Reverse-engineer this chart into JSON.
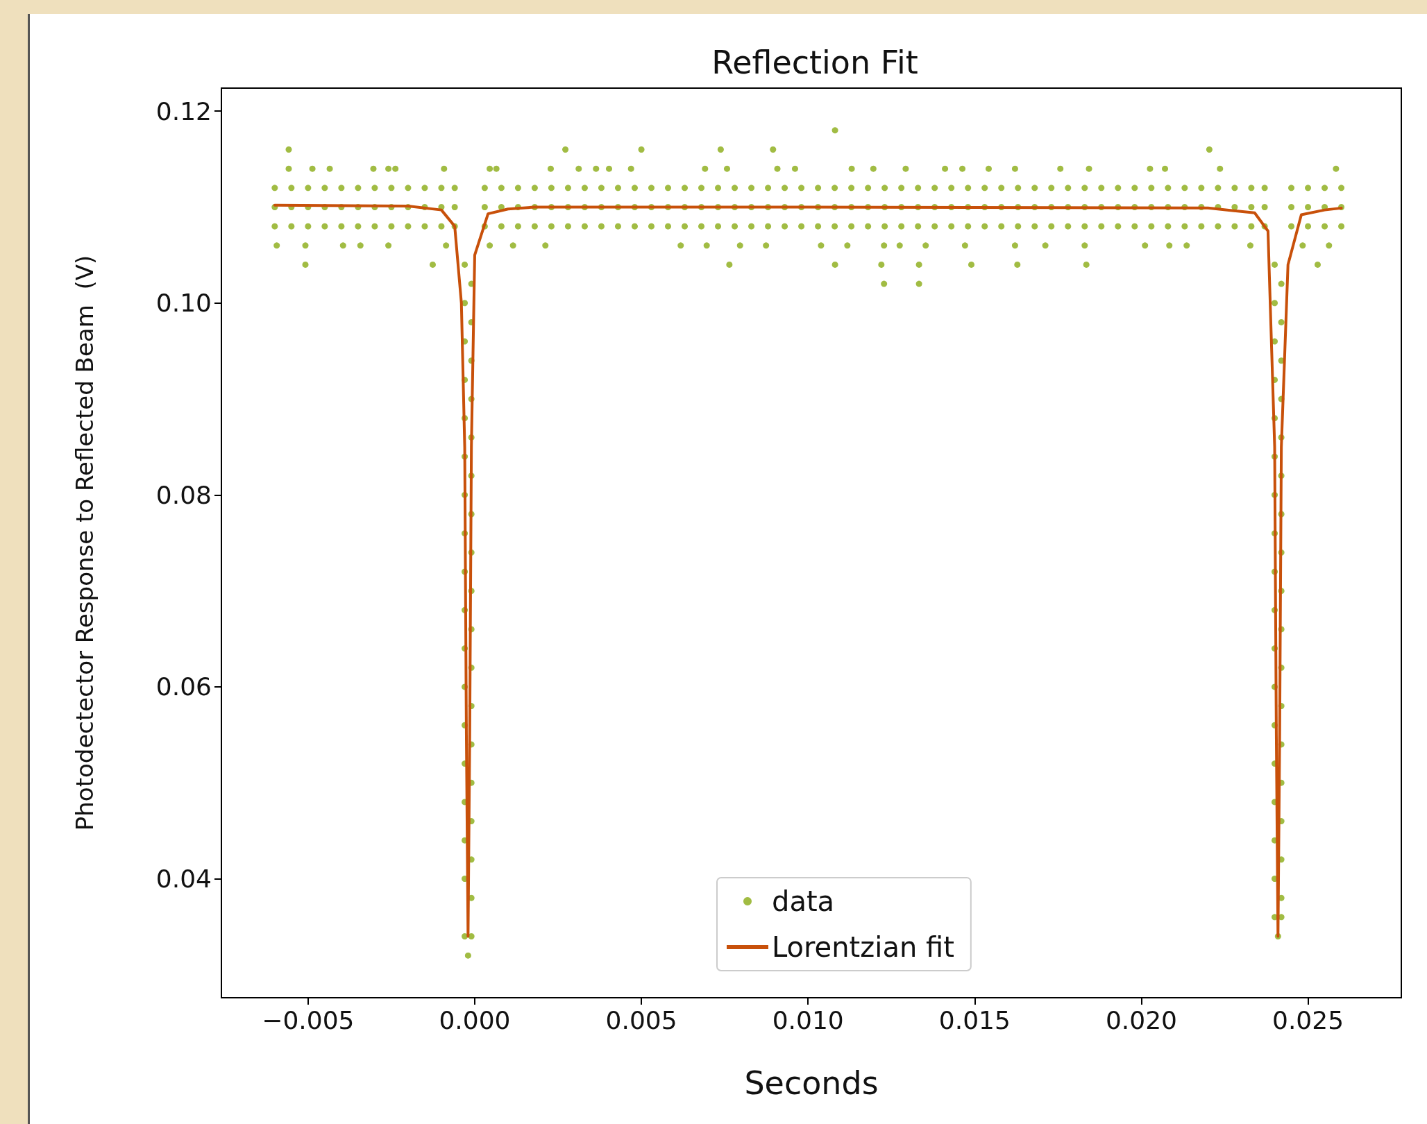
{
  "chart_data": {
    "type": "scatter",
    "title": "Reflection Fit",
    "xlabel": "Seconds",
    "ylabel": "Photodectector Response to Reflected Beam  (V)",
    "xlim": [
      -0.0076,
      0.0278
    ],
    "ylim": [
      0.0276,
      0.1224
    ],
    "xticks": [
      {
        "value": -0.005,
        "label": "−0.005"
      },
      {
        "value": 0,
        "label": "0.000"
      },
      {
        "value": 0.005,
        "label": "0.005"
      },
      {
        "value": 0.01,
        "label": "0.010"
      },
      {
        "value": 0.015,
        "label": "0.015"
      },
      {
        "value": 0.02,
        "label": "0.020"
      },
      {
        "value": 0.025,
        "label": "0.025"
      }
    ],
    "yticks": [
      {
        "value": 0.04,
        "label": "0.04"
      },
      {
        "value": 0.06,
        "label": "0.06"
      },
      {
        "value": 0.08,
        "label": "0.08"
      },
      {
        "value": 0.1,
        "label": "0.10"
      },
      {
        "value": 0.12,
        "label": "0.12"
      }
    ],
    "grid": false,
    "legend": "bottom",
    "series": [
      {
        "name": "data",
        "type": "scatter",
        "color": "#8aab14",
        "marker": "circle",
        "x": [
          -0.006,
          -0.0055,
          -0.005,
          -0.0045,
          -0.004,
          -0.0035,
          -0.003,
          -0.0025,
          -0.002,
          -0.0015,
          -0.001,
          -0.0006,
          0.0003,
          0.0008,
          0.0013,
          0.0018,
          0.0023,
          0.0028,
          0.0033,
          0.0038,
          0.0043,
          0.0048,
          0.0053,
          0.0058,
          0.0063,
          0.0068,
          0.0073,
          0.0078,
          0.0083,
          0.0088,
          0.0093,
          0.0098,
          0.0103,
          0.0108,
          0.0113,
          0.0118,
          0.0123,
          0.0128,
          0.0133,
          0.0138,
          0.0143,
          0.0148,
          0.0153,
          0.0158,
          0.0163,
          0.0168,
          0.0173,
          0.0178,
          0.0183,
          0.0188,
          0.0193,
          0.0198,
          0.0203,
          0.0208,
          0.0213,
          0.0218,
          0.0223,
          0.0228,
          0.0233,
          0.0237,
          0.0245,
          0.025,
          0.0255,
          0.026,
          -0.006,
          -0.0055,
          -0.005,
          -0.0045,
          -0.004,
          -0.0035,
          -0.003,
          -0.0025,
          -0.002,
          -0.0015,
          -0.001,
          -0.0006,
          0.0003,
          0.0008,
          0.0013,
          0.0018,
          0.0023,
          0.0028,
          0.0033,
          0.0038,
          0.0043,
          0.0048,
          0.0053,
          0.0058,
          0.0063,
          0.0068,
          0.0073,
          0.0078,
          0.0083,
          0.0088,
          0.0093,
          0.0098,
          0.0103,
          0.0108,
          0.0113,
          0.0118,
          0.0123,
          0.0128,
          0.0133,
          0.0138,
          0.0143,
          0.0148,
          0.0153,
          0.0158,
          0.0163,
          0.0168,
          0.0173,
          0.0178,
          0.0183,
          0.0188,
          0.0193,
          0.0198,
          0.0203,
          0.0208,
          0.0213,
          0.0218,
          0.0223,
          0.0228,
          0.0233,
          0.0237,
          0.0245,
          0.025,
          0.0255,
          0.026,
          -0.006,
          -0.0055,
          -0.005,
          -0.0045,
          -0.004,
          -0.0035,
          -0.003,
          -0.0025,
          -0.002,
          -0.0015,
          -0.001,
          -0.0006,
          0.0003,
          0.0008,
          0.0013,
          0.0018,
          0.0023,
          0.0028,
          0.0033,
          0.0038,
          0.0043,
          0.0048,
          0.0053,
          0.0058,
          0.0063,
          0.0068,
          0.0073,
          0.0078,
          0.0083,
          0.0088,
          0.0093,
          0.0098,
          0.0103,
          0.0108,
          0.0113,
          0.0118,
          0.0123,
          0.0128,
          0.0133,
          0.0138,
          0.0143,
          0.0148,
          0.0153,
          0.0158,
          0.0163,
          0.0168,
          0.0173,
          0.0178,
          0.0183,
          0.0188,
          0.0193,
          0.0198,
          0.0203,
          0.0208,
          0.0213,
          0.0218,
          0.0223,
          0.0228,
          0.0233,
          0.0237,
          0.0245,
          0.025,
          0.0255,
          0.026,
          -0.00558,
          -0.00487,
          -0.00435,
          -0.00304,
          -0.00259,
          -0.00238,
          -0.00092,
          0.00045,
          0.00065,
          0.00228,
          0.00312,
          0.00364,
          0.00403,
          0.00469,
          0.00691,
          0.00757,
          0.00908,
          0.00961,
          0.01131,
          0.01196,
          0.01293,
          0.01411,
          0.01463,
          0.01542,
          0.01621,
          0.01757,
          0.01843,
          0.02026,
          0.02071,
          0.02236,
          0.02584,
          -0.00558,
          0.00272,
          0.005,
          0.00738,
          0.00895,
          0.02204,
          0.01081,
          -0.00594,
          -0.00508,
          -0.00395,
          -0.00343,
          -0.00259,
          -0.00086,
          0.00045,
          0.00115,
          0.00212,
          0.00618,
          0.00696,
          0.00796,
          0.00874,
          0.01039,
          0.01118,
          0.01228,
          0.01275,
          0.01353,
          0.01471,
          0.01621,
          0.01712,
          0.0183,
          0.02011,
          0.02084,
          0.02136,
          0.02327,
          0.02484,
          0.02563,
          -0.00508,
          -0.00126,
          0.00764,
          0.01081,
          0.0122,
          0.01333,
          0.0149,
          0.01628,
          0.01835,
          0.02529,
          0.01228,
          0.01333,
          -0.0003,
          -0.0003,
          -0.0003,
          -0.0003,
          -0.0003,
          -0.0003,
          -0.0003,
          -0.0003,
          -0.0003,
          -0.0003,
          -0.0003,
          -0.0003,
          -0.0003,
          -0.0003,
          -0.0003,
          -0.0003,
          -0.0003,
          -0.0003,
          -0.0001,
          -0.0001,
          -0.0001,
          -0.0001,
          -0.0001,
          -0.0001,
          -0.0001,
          -0.0001,
          -0.0001,
          -0.0001,
          -0.0001,
          -0.0001,
          -0.0001,
          -0.0001,
          -0.0001,
          -0.0001,
          -0.0001,
          -0.0001,
          -0.0002,
          0.024,
          0.024,
          0.024,
          0.024,
          0.024,
          0.024,
          0.024,
          0.024,
          0.024,
          0.024,
          0.024,
          0.024,
          0.024,
          0.024,
          0.024,
          0.024,
          0.024,
          0.024,
          0.0242,
          0.0242,
          0.0242,
          0.0242,
          0.0242,
          0.0242,
          0.0242,
          0.0242,
          0.0242,
          0.0242,
          0.0242,
          0.0242,
          0.0242,
          0.0242,
          0.0242,
          0.0242,
          0.0242,
          0.0242,
          0.0241
        ],
        "values": [
          0.112,
          0.112,
          0.112,
          0.112,
          0.112,
          0.112,
          0.112,
          0.112,
          0.112,
          0.112,
          0.112,
          0.112,
          0.112,
          0.112,
          0.112,
          0.112,
          0.112,
          0.112,
          0.112,
          0.112,
          0.112,
          0.112,
          0.112,
          0.112,
          0.112,
          0.112,
          0.112,
          0.112,
          0.112,
          0.112,
          0.112,
          0.112,
          0.112,
          0.112,
          0.112,
          0.112,
          0.112,
          0.112,
          0.112,
          0.112,
          0.112,
          0.112,
          0.112,
          0.112,
          0.112,
          0.112,
          0.112,
          0.112,
          0.112,
          0.112,
          0.112,
          0.112,
          0.112,
          0.112,
          0.112,
          0.112,
          0.112,
          0.112,
          0.112,
          0.112,
          0.112,
          0.112,
          0.112,
          0.112,
          0.11,
          0.11,
          0.11,
          0.11,
          0.11,
          0.11,
          0.11,
          0.11,
          0.11,
          0.11,
          0.11,
          0.11,
          0.11,
          0.11,
          0.11,
          0.11,
          0.11,
          0.11,
          0.11,
          0.11,
          0.11,
          0.11,
          0.11,
          0.11,
          0.11,
          0.11,
          0.11,
          0.11,
          0.11,
          0.11,
          0.11,
          0.11,
          0.11,
          0.11,
          0.11,
          0.11,
          0.11,
          0.11,
          0.11,
          0.11,
          0.11,
          0.11,
          0.11,
          0.11,
          0.11,
          0.11,
          0.11,
          0.11,
          0.11,
          0.11,
          0.11,
          0.11,
          0.11,
          0.11,
          0.11,
          0.11,
          0.11,
          0.11,
          0.11,
          0.11,
          0.11,
          0.11,
          0.11,
          0.11,
          0.108,
          0.108,
          0.108,
          0.108,
          0.108,
          0.108,
          0.108,
          0.108,
          0.108,
          0.108,
          0.108,
          0.108,
          0.108,
          0.108,
          0.108,
          0.108,
          0.108,
          0.108,
          0.108,
          0.108,
          0.108,
          0.108,
          0.108,
          0.108,
          0.108,
          0.108,
          0.108,
          0.108,
          0.108,
          0.108,
          0.108,
          0.108,
          0.108,
          0.108,
          0.108,
          0.108,
          0.108,
          0.108,
          0.108,
          0.108,
          0.108,
          0.108,
          0.108,
          0.108,
          0.108,
          0.108,
          0.108,
          0.108,
          0.108,
          0.108,
          0.108,
          0.108,
          0.108,
          0.108,
          0.108,
          0.108,
          0.108,
          0.108,
          0.108,
          0.108,
          0.108,
          0.108,
          0.108,
          0.108,
          0.114,
          0.114,
          0.114,
          0.114,
          0.114,
          0.114,
          0.114,
          0.114,
          0.114,
          0.114,
          0.114,
          0.114,
          0.114,
          0.114,
          0.114,
          0.114,
          0.114,
          0.114,
          0.114,
          0.114,
          0.114,
          0.114,
          0.114,
          0.114,
          0.114,
          0.114,
          0.114,
          0.114,
          0.114,
          0.114,
          0.114,
          0.116,
          0.116,
          0.116,
          0.116,
          0.116,
          0.116,
          0.118,
          0.106,
          0.106,
          0.106,
          0.106,
          0.106,
          0.106,
          0.106,
          0.106,
          0.106,
          0.106,
          0.106,
          0.106,
          0.106,
          0.106,
          0.106,
          0.106,
          0.106,
          0.106,
          0.106,
          0.106,
          0.106,
          0.106,
          0.106,
          0.106,
          0.106,
          0.106,
          0.106,
          0.106,
          0.104,
          0.104,
          0.104,
          0.104,
          0.104,
          0.104,
          0.104,
          0.104,
          0.104,
          0.104,
          0.102,
          0.102,
          0.104,
          0.1,
          0.096,
          0.092,
          0.088,
          0.084,
          0.08,
          0.076,
          0.072,
          0.068,
          0.064,
          0.06,
          0.056,
          0.052,
          0.048,
          0.044,
          0.04,
          0.034,
          0.102,
          0.098,
          0.094,
          0.09,
          0.086,
          0.082,
          0.078,
          0.074,
          0.07,
          0.066,
          0.062,
          0.058,
          0.054,
          0.05,
          0.046,
          0.042,
          0.038,
          0.034,
          0.032,
          0.104,
          0.1,
          0.096,
          0.092,
          0.088,
          0.084,
          0.08,
          0.076,
          0.072,
          0.068,
          0.064,
          0.06,
          0.056,
          0.052,
          0.048,
          0.044,
          0.04,
          0.036,
          0.102,
          0.098,
          0.094,
          0.09,
          0.086,
          0.082,
          0.078,
          0.074,
          0.07,
          0.066,
          0.062,
          0.058,
          0.054,
          0.05,
          0.046,
          0.042,
          0.038,
          0.036,
          0.034
        ]
      },
      {
        "name": "Lorentzian fit",
        "type": "line",
        "color": "#c8500a",
        "marker": "none",
        "line_style": "solid",
        "x": [
          -0.006,
          -0.002,
          -0.001,
          -0.0006,
          -0.0004,
          -0.0003,
          -0.00025,
          -0.0002,
          -0.00015,
          -0.0001,
          0,
          0.0004,
          0.001,
          0.0018,
          0.01,
          0.022,
          0.0234,
          0.0238,
          0.024,
          0.02405,
          0.0241,
          0.02415,
          0.0242,
          0.0244,
          0.0248,
          0.0255,
          0.026
        ],
        "values": [
          0.1102,
          0.1101,
          0.1097,
          0.108,
          0.1,
          0.085,
          0.055,
          0.034,
          0.055,
          0.085,
          0.105,
          0.1093,
          0.1098,
          0.11,
          0.11,
          0.1099,
          0.1094,
          0.1075,
          0.085,
          0.055,
          0.034,
          0.055,
          0.085,
          0.104,
          0.1092,
          0.1097,
          0.1099
        ]
      }
    ]
  }
}
